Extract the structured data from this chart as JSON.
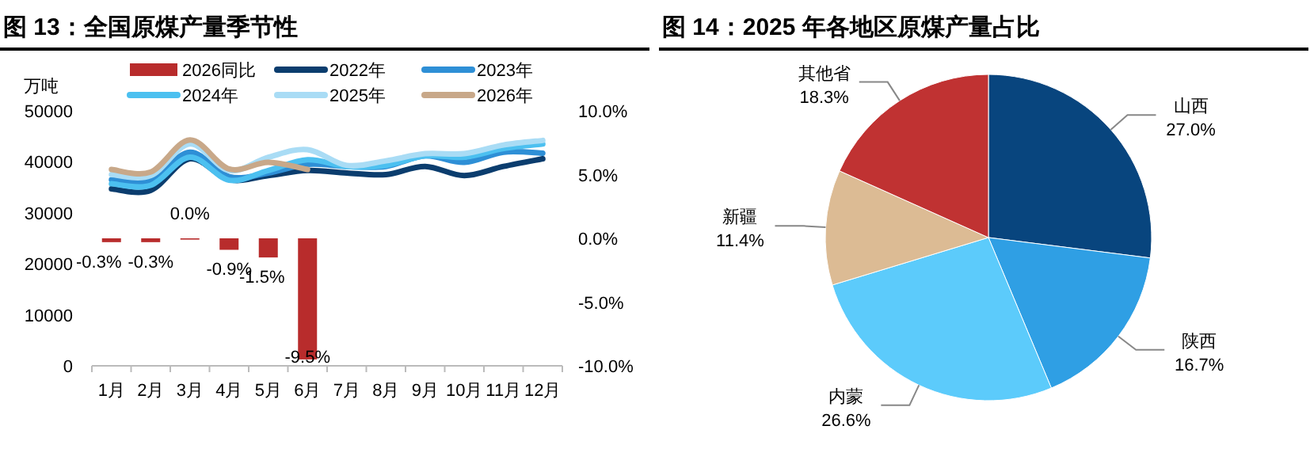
{
  "chart_data": [
    {
      "type": "line",
      "title": "图 13：全国原煤产量季节性",
      "ylabel": "万吨",
      "categories": [
        "1月",
        "2月",
        "3月",
        "4月",
        "5月",
        "6月",
        "7月",
        "8月",
        "9月",
        "10月",
        "11月",
        "12月"
      ],
      "ylim": [
        0,
        50000
      ],
      "yticks": [
        0,
        10000,
        20000,
        30000,
        40000,
        50000
      ],
      "y2lim": [
        -10,
        10
      ],
      "y2ticks": [
        {
          "value": 10,
          "label": "10.0%"
        },
        {
          "value": 5,
          "label": "5.0%"
        },
        {
          "value": 0,
          "label": "0.0%"
        },
        {
          "value": -5,
          "label": "-5.0%"
        },
        {
          "value": -10,
          "label": "-10.0%"
        }
      ],
      "legend": "top",
      "grid": false,
      "series": [
        {
          "name": "2026同比",
          "type": "bar",
          "axis": "y2",
          "color": "#b82c2c",
          "values": [
            -0.3,
            -0.3,
            0.0,
            -0.9,
            -1.5,
            -9.5,
            null,
            null,
            null,
            null,
            null,
            null
          ],
          "value_labels": [
            "-0.3%",
            "-0.3%",
            "0.0%",
            "-0.9%",
            "-1.5%",
            "-9.5%",
            null,
            null,
            null,
            null,
            null,
            null
          ]
        },
        {
          "name": "2022年",
          "color": "#0b3d6e",
          "values": [
            34700,
            34400,
            40600,
            36500,
            37300,
            38300,
            37800,
            37500,
            39100,
            37300,
            39100,
            40600
          ]
        },
        {
          "name": "2023年",
          "color": "#2e8fd6",
          "values": [
            36500,
            36400,
            41900,
            37100,
            37800,
            39500,
            39100,
            39100,
            41200,
            39900,
            41900,
            41700
          ]
        },
        {
          "name": "2024年",
          "color": "#4cc0f0",
          "values": [
            35700,
            35400,
            40900,
            36400,
            38300,
            40400,
            39100,
            39300,
            41200,
            40900,
            42600,
            43500
          ]
        },
        {
          "name": "2025年",
          "color": "#a9dcf5",
          "values": [
            37500,
            37300,
            43500,
            38300,
            40900,
            42400,
            39300,
            40200,
            41600,
            41600,
            43300,
            44200
          ]
        },
        {
          "name": "2026年",
          "color": "#c8a889",
          "values": [
            38500,
            38000,
            44300,
            38600,
            39900,
            38500,
            null,
            null,
            null,
            null,
            null,
            null
          ]
        }
      ]
    },
    {
      "type": "pie",
      "title": "图 14：2025 年各地区原煤产量占比",
      "categories": [
        "山西",
        "陕西",
        "内蒙",
        "新疆",
        "其他省"
      ],
      "values": [
        27.0,
        16.7,
        26.6,
        11.4,
        18.3
      ],
      "colors": [
        "#08457e",
        "#2f9fe4",
        "#5ccbfb",
        "#dcbb94",
        "#c03232"
      ],
      "value_labels": [
        "27.0%",
        "16.7%",
        "26.6%",
        "11.4%",
        "18.3%"
      ]
    }
  ]
}
